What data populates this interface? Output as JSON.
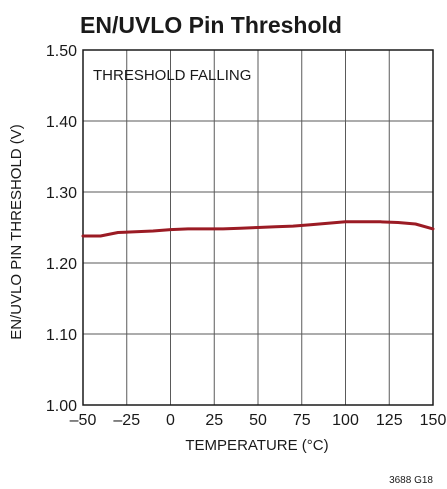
{
  "chart_data": {
    "type": "line",
    "title": "EN/UVLO Pin Threshold",
    "xlabel": "TEMPERATURE (°C)",
    "ylabel": "EN/UVLO PIN THRESHOLD (V)",
    "annotation": "THRESHOLD FALLING",
    "figure_id": "3688 G18",
    "xlim": [
      -50,
      150
    ],
    "ylim": [
      1.0,
      1.5
    ],
    "x_ticks": [
      -50,
      -25,
      0,
      25,
      50,
      75,
      100,
      125,
      150
    ],
    "x_tick_labels": [
      "–50",
      "–25",
      "0",
      "25",
      "50",
      "75",
      "100",
      "125",
      "150"
    ],
    "y_ticks": [
      1.0,
      1.1,
      1.2,
      1.3,
      1.4,
      1.5
    ],
    "y_tick_labels": [
      "1.00",
      "1.10",
      "1.20",
      "1.30",
      "1.40",
      "1.50"
    ],
    "grid": true,
    "line_color": "#9b1b24",
    "series": [
      {
        "x": [
          -50,
          -40,
          -30,
          -20,
          -10,
          0,
          10,
          20,
          30,
          40,
          50,
          60,
          70,
          80,
          90,
          100,
          110,
          120,
          130,
          140,
          150
        ],
        "y": [
          1.238,
          1.238,
          1.243,
          1.244,
          1.245,
          1.247,
          1.248,
          1.248,
          1.248,
          1.249,
          1.25,
          1.251,
          1.252,
          1.254,
          1.256,
          1.258,
          1.258,
          1.258,
          1.257,
          1.255,
          1.248
        ]
      }
    ]
  }
}
